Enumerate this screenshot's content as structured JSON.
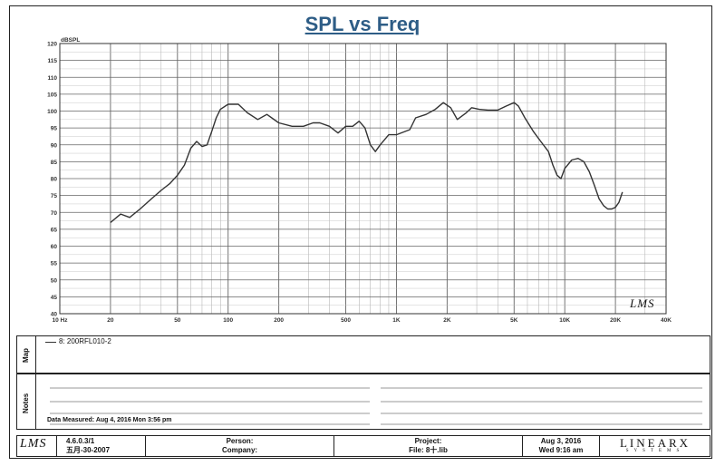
{
  "chart_data": {
    "type": "line",
    "title": "SPL vs Freq",
    "ylabel": "dBSPL",
    "xscale": "log",
    "xlim": [
      10,
      40000
    ],
    "ylim": [
      40,
      120
    ],
    "grid": true,
    "yticks": [
      120,
      115,
      110,
      105,
      100,
      95,
      90,
      85,
      80,
      75,
      70,
      65,
      60,
      55,
      50,
      45,
      40
    ],
    "xticks": [
      {
        "v": 10,
        "label": "10 Hz"
      },
      {
        "v": 20,
        "label": "20"
      },
      {
        "v": 50,
        "label": "50"
      },
      {
        "v": 100,
        "label": "100"
      },
      {
        "v": 200,
        "label": "200"
      },
      {
        "v": 500,
        "label": "500"
      },
      {
        "v": 1000,
        "label": "1K"
      },
      {
        "v": 2000,
        "label": "2K"
      },
      {
        "v": 5000,
        "label": "5K"
      },
      {
        "v": 10000,
        "label": "10K"
      },
      {
        "v": 20000,
        "label": "20K"
      },
      {
        "v": 40000,
        "label": "40K"
      }
    ],
    "series": [
      {
        "name": "8: 200RFL010-2",
        "color": "#333333",
        "points": [
          [
            20,
            67
          ],
          [
            23,
            69.5
          ],
          [
            26,
            68.5
          ],
          [
            30,
            71
          ],
          [
            35,
            74
          ],
          [
            40,
            76.5
          ],
          [
            45,
            78.5
          ],
          [
            50,
            81
          ],
          [
            55,
            84
          ],
          [
            60,
            89
          ],
          [
            65,
            91
          ],
          [
            70,
            89.5
          ],
          [
            75,
            90
          ],
          [
            80,
            94
          ],
          [
            85,
            98
          ],
          [
            90,
            100.5
          ],
          [
            100,
            102
          ],
          [
            115,
            102
          ],
          [
            130,
            99.5
          ],
          [
            150,
            97.5
          ],
          [
            170,
            99
          ],
          [
            200,
            96.5
          ],
          [
            240,
            95.5
          ],
          [
            280,
            95.5
          ],
          [
            320,
            96.5
          ],
          [
            350,
            96.5
          ],
          [
            400,
            95.5
          ],
          [
            450,
            93.5
          ],
          [
            500,
            95.5
          ],
          [
            550,
            95.5
          ],
          [
            600,
            97
          ],
          [
            650,
            95
          ],
          [
            700,
            90
          ],
          [
            750,
            88
          ],
          [
            800,
            90
          ],
          [
            900,
            93
          ],
          [
            1000,
            93
          ],
          [
            1200,
            94.5
          ],
          [
            1300,
            98
          ],
          [
            1500,
            99
          ],
          [
            1700,
            100.5
          ],
          [
            1900,
            102.5
          ],
          [
            2100,
            101
          ],
          [
            2300,
            97.5
          ],
          [
            2600,
            99.5
          ],
          [
            2800,
            101
          ],
          [
            3100,
            100.5
          ],
          [
            3500,
            100.3
          ],
          [
            4000,
            100.3
          ],
          [
            4500,
            101.5
          ],
          [
            5000,
            102.5
          ],
          [
            5300,
            101.5
          ],
          [
            5800,
            98
          ],
          [
            6500,
            94
          ],
          [
            7200,
            91
          ],
          [
            8000,
            88
          ],
          [
            8500,
            84
          ],
          [
            9000,
            81
          ],
          [
            9500,
            80
          ],
          [
            10000,
            83
          ],
          [
            11000,
            85.5
          ],
          [
            12000,
            86
          ],
          [
            13000,
            85
          ],
          [
            14000,
            82
          ],
          [
            15000,
            78
          ],
          [
            16000,
            74
          ],
          [
            17000,
            72
          ],
          [
            18000,
            71
          ],
          [
            19000,
            71
          ],
          [
            20000,
            71.5
          ],
          [
            21000,
            73
          ],
          [
            22000,
            76
          ]
        ]
      }
    ]
  },
  "plot_mark": "LMS",
  "map_label": "Map",
  "legend_line": "8: 200RFL010-2",
  "notes_label": "Notes",
  "date_measured": "Data Measured: Aug 4, 2016 Mon 3:56 pm",
  "footer": {
    "logo": "LMS",
    "version": "4.6.0.3/1",
    "version_date": "五月-30-2007",
    "person_label": "Person:",
    "company_label": "Company:",
    "project_label": "Project:",
    "file_label": "File: 8十.lib",
    "date_line": "Aug 3, 2016",
    "time_line": "Wed 9:16 am",
    "brand": "LINEARX",
    "brand_sub": "SYSTEMS"
  }
}
